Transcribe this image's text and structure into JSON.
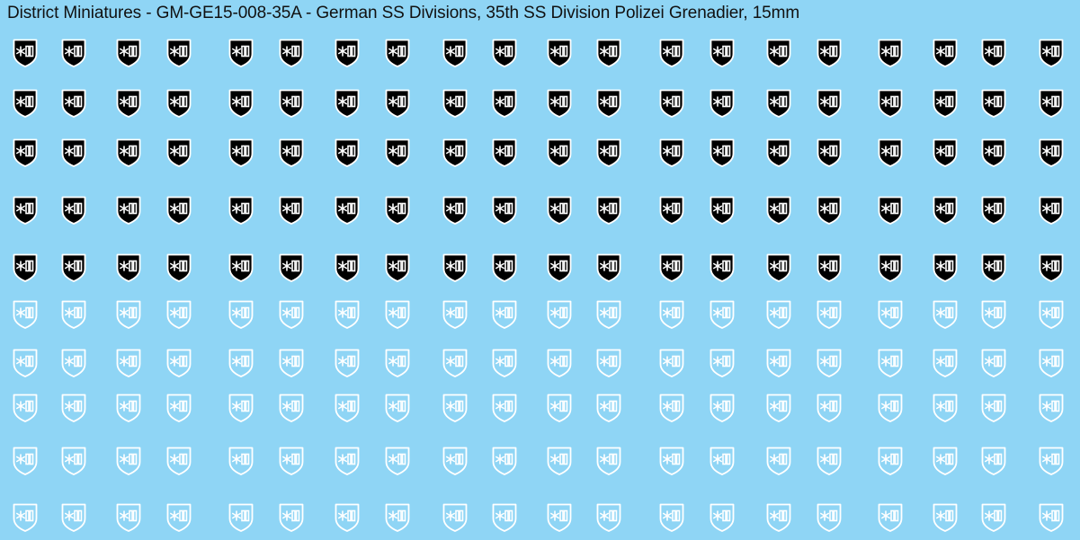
{
  "sheet": {
    "title": "District Miniatures - GM-GE15-008-35A - German SS Divisions, 35th SS Division Polizei Grenadier, 15mm",
    "background": "#8fd5f5"
  },
  "decals": {
    "icon": "shield-insignia-icon",
    "variants": [
      {
        "name": "black",
        "fill": "#000000",
        "stroke": "#ffffff",
        "mark": "#ffffff",
        "rows": 5
      },
      {
        "name": "white-outline",
        "fill": "none",
        "stroke": "#ffffff",
        "mark": "#ffffff",
        "rows": 5
      }
    ],
    "columns_per_row": 20
  }
}
